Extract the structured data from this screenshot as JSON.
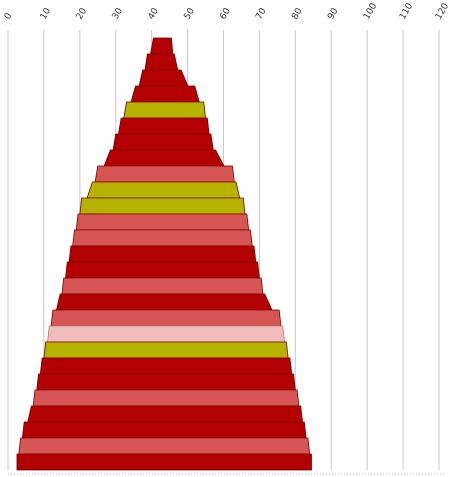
{
  "chart_data": {
    "type": "bar",
    "subtype": "funnel",
    "orientation": "horizontal",
    "title": "",
    "xlabel": "",
    "ylabel": "",
    "xlim": [
      0,
      120
    ],
    "x_ticks": [
      "0",
      "10",
      "20",
      "30",
      "40",
      "50",
      "60",
      "70",
      "80",
      "90",
      "100",
      "110",
      "120"
    ],
    "tick_label_position": "top",
    "tick_label_rotation": -60,
    "grid": true,
    "legend": "none",
    "colors": {
      "dark_red": "#b30000",
      "salmon": "#d65555",
      "olive": "#b5b300",
      "pink": "#f0bcbc",
      "grid": "#c8c8c8"
    },
    "bands": [
      {
        "left": 40.5,
        "right": 45.5,
        "color": "dark_red"
      },
      {
        "left": 38.8,
        "right": 46.3,
        "color": "dark_red"
      },
      {
        "left": 37.5,
        "right": 48.2,
        "color": "dark_red"
      },
      {
        "left": 35.5,
        "right": 52.0,
        "color": "dark_red"
      },
      {
        "left": 33.0,
        "right": 54.5,
        "color": "olive"
      },
      {
        "left": 31.5,
        "right": 55.5,
        "color": "dark_red"
      },
      {
        "left": 30.0,
        "right": 56.5,
        "color": "dark_red"
      },
      {
        "left": 28.5,
        "right": 57.8,
        "color": "dark_red"
      },
      {
        "left": 25.0,
        "right": 62.5,
        "color": "salmon"
      },
      {
        "left": 23.5,
        "right": 63.5,
        "color": "olive"
      },
      {
        "left": 20.5,
        "right": 65.5,
        "color": "olive"
      },
      {
        "left": 19.5,
        "right": 66.5,
        "color": "salmon"
      },
      {
        "left": 18.5,
        "right": 67.5,
        "color": "salmon"
      },
      {
        "left": 17.5,
        "right": 68.5,
        "color": "dark_red"
      },
      {
        "left": 16.5,
        "right": 69.5,
        "color": "dark_red"
      },
      {
        "left": 15.5,
        "right": 70.5,
        "color": "salmon"
      },
      {
        "left": 14.5,
        "right": 71.5,
        "color": "dark_red"
      },
      {
        "left": 12.5,
        "right": 75.5,
        "color": "salmon"
      },
      {
        "left": 11.5,
        "right": 76.5,
        "color": "pink"
      },
      {
        "left": 10.5,
        "right": 77.5,
        "color": "olive"
      },
      {
        "left": 9.5,
        "right": 78.5,
        "color": "dark_red"
      },
      {
        "left": 8.5,
        "right": 79.5,
        "color": "dark_red"
      },
      {
        "left": 7.5,
        "right": 80.5,
        "color": "salmon"
      },
      {
        "left": 6.5,
        "right": 81.5,
        "color": "dark_red"
      },
      {
        "left": 4.5,
        "right": 82.5,
        "color": "dark_red"
      },
      {
        "left": 3.5,
        "right": 83.5,
        "color": "salmon"
      },
      {
        "left": 2.5,
        "right": 84.5,
        "color": "dark_red"
      }
    ]
  }
}
